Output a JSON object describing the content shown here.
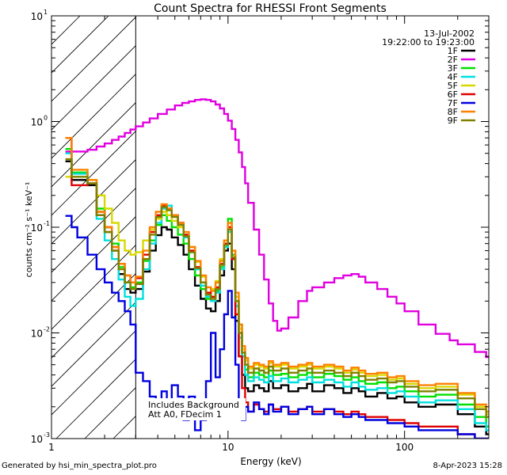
{
  "chart_data": {
    "type": "line",
    "title": "Count Spectra for RHESSI Front Segments",
    "xlabel": "Energy (keV)",
    "ylabel": "counts cm⁻² s⁻¹ keV⁻¹",
    "xscale": "log",
    "yscale": "log",
    "xlim": [
      1,
      300
    ],
    "ylim": [
      0.001,
      10
    ],
    "x_ticks": [
      {
        "value": 1,
        "label": "1"
      },
      {
        "value": 10,
        "label": "10"
      },
      {
        "value": 100,
        "label": "100"
      }
    ],
    "y_ticks": [
      {
        "value": 0.001,
        "base": "10",
        "exp": "-3"
      },
      {
        "value": 0.01,
        "base": "10",
        "exp": "-2"
      },
      {
        "value": 0.1,
        "base": "10",
        "exp": "-1"
      },
      {
        "value": 1,
        "base": "10",
        "exp": "0"
      },
      {
        "value": 10,
        "base": "10",
        "exp": "1"
      }
    ],
    "date": "13-Jul-2002",
    "time_range": "19:22:00 to 19:23:00",
    "shaded_region": {
      "x_min": 1,
      "x_max": 3,
      "style": "diagonal hatch"
    },
    "annotations": [
      "Includes Background",
      "Att A0, FDecim 1"
    ],
    "series": [
      {
        "name": "1F",
        "color": "#000000",
        "x": [
          1.2,
          1.3,
          1.4,
          1.6,
          1.8,
          2,
          2.2,
          2.4,
          2.6,
          2.8,
          3,
          3.3,
          3.6,
          3.9,
          4.2,
          4.5,
          4.8,
          5.2,
          5.6,
          6,
          6.5,
          7,
          7.5,
          8,
          8.5,
          9,
          9.5,
          10,
          10.5,
          11,
          11.5,
          12,
          12.5,
          13,
          14,
          15,
          16,
          17,
          18,
          20,
          22,
          25,
          28,
          30,
          35,
          40,
          45,
          50,
          55,
          60,
          70,
          80,
          90,
          100,
          120,
          150,
          200,
          250,
          290
        ],
        "y": [
          0.42,
          0.28,
          0.28,
          0.25,
          0.13,
          0.09,
          0.06,
          0.036,
          0.026,
          0.024,
          0.026,
          0.038,
          0.06,
          0.084,
          0.1,
          0.095,
          0.08,
          0.068,
          0.055,
          0.04,
          0.028,
          0.021,
          0.017,
          0.016,
          0.02,
          0.035,
          0.06,
          0.07,
          0.04,
          0.013,
          0.006,
          0.004,
          0.003,
          0.0028,
          0.0032,
          0.003,
          0.0028,
          0.0035,
          0.003,
          0.0032,
          0.0028,
          0.003,
          0.0033,
          0.0028,
          0.0032,
          0.003,
          0.0027,
          0.003,
          0.0028,
          0.0025,
          0.0027,
          0.0024,
          0.0025,
          0.0022,
          0.002,
          0.0021,
          0.0017,
          0.0013,
          0.0011
        ]
      },
      {
        "name": "2F",
        "color": "#e000e0",
        "x": [
          1.2,
          1.4,
          1.6,
          1.8,
          2,
          2.2,
          2.4,
          2.6,
          2.8,
          3,
          3.3,
          3.6,
          4,
          4.5,
          5,
          5.5,
          6,
          6.5,
          7,
          7.5,
          8,
          8.5,
          9,
          9.5,
          10,
          10.5,
          11,
          11.5,
          12,
          12.5,
          13,
          14,
          15,
          16,
          17,
          18,
          19,
          20,
          22,
          25,
          28,
          30,
          35,
          40,
          45,
          50,
          55,
          60,
          70,
          80,
          90,
          100,
          120,
          150,
          180,
          200,
          250,
          290
        ],
        "y": [
          0.52,
          0.52,
          0.54,
          0.58,
          0.62,
          0.67,
          0.72,
          0.78,
          0.84,
          0.9,
          0.98,
          1.07,
          1.18,
          1.3,
          1.42,
          1.5,
          1.55,
          1.6,
          1.62,
          1.6,
          1.55,
          1.45,
          1.33,
          1.18,
          1.02,
          0.85,
          0.67,
          0.51,
          0.37,
          0.26,
          0.17,
          0.095,
          0.055,
          0.032,
          0.019,
          0.013,
          0.0105,
          0.011,
          0.014,
          0.02,
          0.025,
          0.027,
          0.03,
          0.033,
          0.035,
          0.036,
          0.034,
          0.03,
          0.026,
          0.022,
          0.019,
          0.016,
          0.012,
          0.0098,
          0.0085,
          0.0078,
          0.0066,
          0.0059
        ]
      },
      {
        "name": "3F",
        "color": "#00e000",
        "x": [
          1.2,
          1.3,
          1.4,
          1.6,
          1.8,
          2,
          2.2,
          2.4,
          2.6,
          2.8,
          3,
          3.3,
          3.6,
          3.9,
          4.2,
          4.5,
          4.8,
          5.2,
          5.6,
          6,
          6.5,
          7,
          7.5,
          8,
          8.5,
          9,
          9.5,
          10,
          10.5,
          11,
          11.5,
          12,
          12.5,
          13,
          14,
          15,
          16,
          17,
          18,
          20,
          22,
          25,
          28,
          30,
          35,
          40,
          45,
          50,
          55,
          60,
          70,
          80,
          90,
          100,
          120,
          150,
          200,
          250,
          290
        ],
        "y": [
          0.55,
          0.33,
          0.33,
          0.28,
          0.15,
          0.1,
          0.07,
          0.042,
          0.03,
          0.027,
          0.03,
          0.048,
          0.075,
          0.105,
          0.13,
          0.115,
          0.1,
          0.085,
          0.07,
          0.05,
          0.035,
          0.026,
          0.021,
          0.02,
          0.025,
          0.042,
          0.065,
          0.12,
          0.055,
          0.02,
          0.012,
          0.006,
          0.0045,
          0.0038,
          0.0042,
          0.004,
          0.0038,
          0.0044,
          0.004,
          0.0041,
          0.0038,
          0.004,
          0.0042,
          0.0038,
          0.0041,
          0.0039,
          0.0036,
          0.0038,
          0.0035,
          0.0033,
          0.0034,
          0.003,
          0.0031,
          0.0028,
          0.0025,
          0.0026,
          0.0021,
          0.0016,
          0.0013
        ]
      },
      {
        "name": "4F",
        "color": "#00e0e0",
        "x": [
          1.2,
          1.3,
          1.4,
          1.6,
          1.8,
          2,
          2.2,
          2.4,
          2.6,
          2.8,
          3,
          3.3,
          3.6,
          3.9,
          4.2,
          4.5,
          4.8,
          5.2,
          5.6,
          6,
          6.5,
          7,
          7.5,
          8,
          8.5,
          9,
          9.5,
          10,
          10.5,
          11,
          11.5,
          12,
          12.5,
          13,
          14,
          15,
          16,
          17,
          18,
          20,
          22,
          25,
          28,
          30,
          35,
          40,
          45,
          50,
          55,
          60,
          70,
          80,
          90,
          100,
          120,
          150,
          200,
          250,
          290
        ],
        "y": [
          0.5,
          0.32,
          0.32,
          0.26,
          0.12,
          0.075,
          0.05,
          0.032,
          0.022,
          0.018,
          0.021,
          0.04,
          0.07,
          0.11,
          0.15,
          0.16,
          0.13,
          0.11,
          0.08,
          0.058,
          0.04,
          0.028,
          0.022,
          0.02,
          0.024,
          0.04,
          0.065,
          0.09,
          0.05,
          0.018,
          0.009,
          0.006,
          0.004,
          0.0035,
          0.0038,
          0.0036,
          0.0034,
          0.0039,
          0.0035,
          0.0037,
          0.0034,
          0.0036,
          0.0038,
          0.0034,
          0.0036,
          0.0034,
          0.0031,
          0.0034,
          0.0031,
          0.0029,
          0.003,
          0.0027,
          0.0028,
          0.0025,
          0.0022,
          0.0023,
          0.0019,
          0.0014,
          0.0012
        ]
      },
      {
        "name": "5F",
        "color": "#d8d800",
        "x": [
          1.2,
          1.3,
          1.4,
          1.6,
          1.8,
          2,
          2.2,
          2.4,
          2.6,
          2.8,
          3,
          3.3,
          3.6,
          3.9,
          4.2,
          4.5,
          4.8,
          5.2,
          5.6,
          6,
          6.5,
          7,
          7.5,
          8,
          8.5,
          9,
          9.5,
          10,
          10.5,
          11,
          11.5,
          12,
          12.5,
          13,
          14,
          15,
          16,
          17,
          18,
          20,
          22,
          25,
          28,
          30,
          35,
          40,
          45,
          50,
          55,
          60,
          70,
          80,
          90,
          100,
          120,
          150,
          200,
          250,
          290
        ],
        "y": [
          0.3,
          0.3,
          0.3,
          0.28,
          0.2,
          0.15,
          0.11,
          0.075,
          0.06,
          0.055,
          0.058,
          0.075,
          0.095,
          0.12,
          0.14,
          0.13,
          0.115,
          0.1,
          0.085,
          0.065,
          0.047,
          0.034,
          0.027,
          0.026,
          0.031,
          0.05,
          0.075,
          0.095,
          0.06,
          0.022,
          0.011,
          0.007,
          0.0055,
          0.0046,
          0.005,
          0.0048,
          0.0046,
          0.0052,
          0.0048,
          0.005,
          0.0046,
          0.0048,
          0.005,
          0.0046,
          0.0048,
          0.0046,
          0.0042,
          0.0045,
          0.0042,
          0.0039,
          0.004,
          0.0036,
          0.0037,
          0.0033,
          0.003,
          0.0031,
          0.0026,
          0.002,
          0.0017
        ]
      },
      {
        "name": "6F",
        "color": "#e00000",
        "x": [
          1.2,
          1.3,
          1.4,
          1.6,
          1.8,
          2,
          2.2,
          2.4,
          2.6,
          2.8,
          3,
          3.3,
          3.6,
          3.9,
          4.2,
          4.5,
          4.8,
          5.2,
          5.6,
          6,
          6.5,
          7,
          7.5,
          8,
          8.5,
          9,
          9.5,
          10,
          10.5,
          11,
          11.5,
          12,
          12.5,
          13,
          14,
          15,
          16,
          17,
          18,
          20,
          22,
          25,
          28,
          30,
          35,
          40,
          45,
          50,
          55,
          60,
          70,
          80,
          90,
          100,
          120,
          150,
          200,
          250,
          290
        ],
        "y": [
          0.7,
          0.25,
          0.25,
          0.26,
          0.14,
          0.1,
          0.065,
          0.045,
          0.035,
          0.03,
          0.033,
          0.055,
          0.09,
          0.13,
          0.16,
          0.15,
          0.13,
          0.11,
          0.085,
          0.06,
          0.042,
          0.03,
          0.024,
          0.022,
          0.027,
          0.045,
          0.07,
          0.1,
          0.05,
          0.015,
          0.006,
          0.003,
          0.0022,
          0.0018,
          0.0021,
          0.0019,
          0.0018,
          0.0021,
          0.0019,
          0.002,
          0.0018,
          0.0019,
          0.002,
          0.0018,
          0.0019,
          0.0018,
          0.0017,
          0.0018,
          0.0017,
          0.0016,
          0.0016,
          0.0015,
          0.0015,
          0.0014,
          0.0013,
          0.0013,
          0.0011,
          0.001,
          0.001
        ]
      },
      {
        "name": "7F",
        "color": "#0000e0",
        "x": [
          1.2,
          1.3,
          1.4,
          1.6,
          1.8,
          2,
          2.2,
          2.4,
          2.6,
          2.8,
          3,
          3.3,
          3.6,
          3.9,
          4.2,
          4.5,
          4.8,
          5.2,
          5.6,
          6,
          6.5,
          7,
          7.5,
          8,
          8.5,
          9,
          9.5,
          10,
          10.5,
          11,
          11.5,
          12,
          12.5,
          13,
          14,
          15,
          16,
          17,
          18,
          20,
          22,
          25,
          28,
          30,
          35,
          40,
          45,
          50,
          55,
          60,
          70,
          80,
          90,
          100,
          120,
          150,
          200,
          250,
          290
        ],
        "y": [
          0.128,
          0.1,
          0.08,
          0.055,
          0.04,
          0.03,
          0.024,
          0.02,
          0.016,
          0.012,
          0.0042,
          0.0035,
          0.0025,
          0.002,
          0.0028,
          0.002,
          0.0032,
          0.0025,
          0.0015,
          0.0025,
          0.0012,
          0.0015,
          0.0035,
          0.01,
          0.0038,
          0.007,
          0.015,
          0.025,
          0.014,
          0.005,
          0.002,
          0.0015,
          0.002,
          0.0018,
          0.0022,
          0.0019,
          0.0017,
          0.0021,
          0.0018,
          0.002,
          0.0017,
          0.0019,
          0.002,
          0.0017,
          0.0019,
          0.0017,
          0.0016,
          0.0017,
          0.0016,
          0.0015,
          0.0015,
          0.0014,
          0.0014,
          0.0013,
          0.0012,
          0.0012,
          0.0011,
          0.001,
          0.001
        ]
      },
      {
        "name": "8F",
        "color": "#ff8000",
        "x": [
          1.2,
          1.3,
          1.4,
          1.6,
          1.8,
          2,
          2.2,
          2.4,
          2.6,
          2.8,
          3,
          3.3,
          3.6,
          3.9,
          4.2,
          4.5,
          4.8,
          5.2,
          5.6,
          6,
          6.5,
          7,
          7.5,
          8,
          8.5,
          9,
          9.5,
          10,
          10.5,
          11,
          11.5,
          12,
          12.5,
          13,
          14,
          15,
          16,
          17,
          18,
          20,
          22,
          25,
          28,
          30,
          35,
          40,
          45,
          50,
          55,
          60,
          70,
          80,
          90,
          100,
          120,
          150,
          200,
          250,
          290
        ],
        "y": [
          0.7,
          0.35,
          0.35,
          0.28,
          0.14,
          0.1,
          0.065,
          0.045,
          0.035,
          0.03,
          0.034,
          0.06,
          0.1,
          0.14,
          0.165,
          0.15,
          0.13,
          0.11,
          0.09,
          0.065,
          0.048,
          0.035,
          0.027,
          0.025,
          0.03,
          0.048,
          0.075,
          0.11,
          0.06,
          0.024,
          0.012,
          0.0075,
          0.0058,
          0.0048,
          0.0052,
          0.005,
          0.0048,
          0.0054,
          0.005,
          0.0052,
          0.0048,
          0.005,
          0.0052,
          0.0048,
          0.005,
          0.0048,
          0.0044,
          0.0047,
          0.0044,
          0.0041,
          0.0042,
          0.0038,
          0.0039,
          0.0035,
          0.0032,
          0.0033,
          0.0027,
          0.0021,
          0.0018
        ]
      },
      {
        "name": "9F",
        "color": "#808000",
        "x": [
          1.2,
          1.3,
          1.4,
          1.6,
          1.8,
          2,
          2.2,
          2.4,
          2.6,
          2.8,
          3,
          3.3,
          3.6,
          3.9,
          4.2,
          4.5,
          4.8,
          5.2,
          5.6,
          6,
          6.5,
          7,
          7.5,
          8,
          8.5,
          9,
          9.5,
          10,
          10.5,
          11,
          11.5,
          12,
          12.5,
          13,
          14,
          15,
          16,
          17,
          18,
          20,
          22,
          25,
          28,
          30,
          35,
          40,
          45,
          50,
          55,
          60,
          70,
          80,
          90,
          100,
          120,
          150,
          200,
          250,
          290
        ],
        "y": [
          0.44,
          0.3,
          0.3,
          0.26,
          0.13,
          0.09,
          0.06,
          0.04,
          0.03,
          0.026,
          0.029,
          0.05,
          0.085,
          0.125,
          0.155,
          0.145,
          0.125,
          0.105,
          0.082,
          0.058,
          0.041,
          0.03,
          0.023,
          0.021,
          0.026,
          0.044,
          0.068,
          0.095,
          0.052,
          0.02,
          0.01,
          0.0065,
          0.005,
          0.0042,
          0.0046,
          0.0044,
          0.0042,
          0.0048,
          0.0044,
          0.0046,
          0.0042,
          0.0044,
          0.0046,
          0.0042,
          0.0044,
          0.0042,
          0.0039,
          0.0042,
          0.0039,
          0.0036,
          0.0037,
          0.0034,
          0.0035,
          0.0031,
          0.0028,
          0.0029,
          0.0024,
          0.0019,
          0.0016
        ]
      }
    ]
  },
  "footer": {
    "generated_by": "Generated by hsi_min_spectra_plot.pro",
    "timestamp": "8-Apr-2023 15:28"
  }
}
